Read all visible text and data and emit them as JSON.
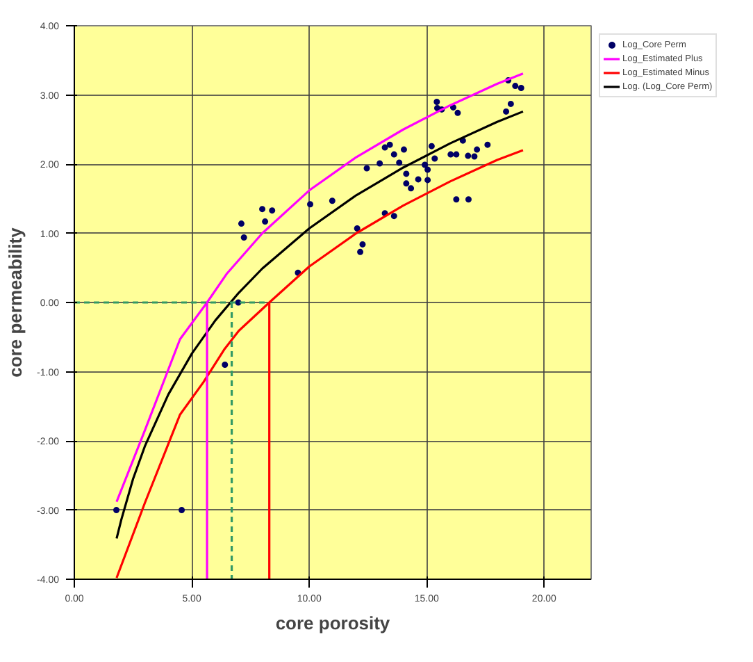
{
  "chart_data": {
    "type": "scatter",
    "xlabel": "core porosity",
    "ylabel": "core permeability",
    "xlim": [
      0,
      22
    ],
    "ylim": [
      -4,
      4
    ],
    "xticks": [
      {
        "value": 0,
        "label": "0.00"
      },
      {
        "value": 5,
        "label": "5.00"
      },
      {
        "value": 10,
        "label": "10.00"
      },
      {
        "value": 15,
        "label": "15.00"
      },
      {
        "value": 20,
        "label": "20.00"
      }
    ],
    "yticks": [
      {
        "value": -4,
        "label": "-4.00"
      },
      {
        "value": -3,
        "label": "-3.00"
      },
      {
        "value": -2,
        "label": "-2.00"
      },
      {
        "value": -1,
        "label": "-1.00"
      },
      {
        "value": 0,
        "label": "0.00"
      },
      {
        "value": 1,
        "label": "1.00"
      },
      {
        "value": 2,
        "label": "2.00"
      },
      {
        "value": 3,
        "label": "3.00"
      },
      {
        "value": 4,
        "label": "4.00"
      }
    ],
    "grid": true,
    "legend": "top right",
    "series": [
      {
        "name": "Log_Core Perm",
        "marker": "circle",
        "color": "#000066",
        "x": [
          1.79,
          4.57,
          6.41,
          6.98,
          7.11,
          7.22,
          8.0,
          8.12,
          8.42,
          9.52,
          10.04,
          10.98,
          12.04,
          12.17,
          12.27,
          12.45,
          13.0,
          13.22,
          13.22,
          13.43,
          13.61,
          13.61,
          13.83,
          14.03,
          14.13,
          14.13,
          14.33,
          14.64,
          14.92,
          15.04,
          15.04,
          15.21,
          15.34,
          15.43,
          15.45,
          15.64,
          16.02,
          16.13,
          16.26,
          16.26,
          16.32,
          16.54,
          16.76,
          16.78,
          17.03,
          17.14,
          17.59,
          18.38,
          18.47,
          18.58,
          18.77,
          19.02
        ],
        "values": [
          -3.0,
          -3.0,
          -0.9,
          0.0,
          1.14,
          0.94,
          1.35,
          1.17,
          1.33,
          0.43,
          1.42,
          1.47,
          1.07,
          0.73,
          0.84,
          1.94,
          2.01,
          2.24,
          1.29,
          2.28,
          2.14,
          1.25,
          2.02,
          2.21,
          1.86,
          1.72,
          1.65,
          1.78,
          1.99,
          1.92,
          1.77,
          2.26,
          2.08,
          2.9,
          2.81,
          2.79,
          2.14,
          2.82,
          2.14,
          1.49,
          2.74,
          2.34,
          2.12,
          1.49,
          2.11,
          2.21,
          2.28,
          2.76,
          3.21,
          2.87,
          3.13,
          3.1
        ]
      },
      {
        "name": "Log_Estimated Plus",
        "type": "line",
        "color": "#ff00ff",
        "x": [
          1.8,
          3,
          4.5,
          5.65,
          6.5,
          8,
          10,
          12,
          14,
          16,
          18,
          19.1
        ],
        "values": [
          -2.88,
          -1.85,
          -0.53,
          0.0,
          0.42,
          1.0,
          1.62,
          2.1,
          2.5,
          2.85,
          3.16,
          3.31
        ]
      },
      {
        "name": "Log_Estimated Minus",
        "type": "line",
        "color": "#ff0000",
        "x": [
          1.8,
          3,
          4.5,
          5.5,
          6.4,
          7,
          8.3,
          10,
          12,
          14,
          16,
          18,
          19.1
        ],
        "values": [
          -3.98,
          -2.9,
          -1.62,
          -1.15,
          -0.67,
          -0.41,
          0.0,
          0.52,
          1.0,
          1.4,
          1.75,
          2.06,
          2.2
        ]
      },
      {
        "name": "Log. (Log_Core Perm)",
        "type": "line",
        "color": "#000000",
        "x": [
          1.8,
          2,
          2.5,
          3,
          4,
          5,
          6,
          7,
          8,
          10,
          12,
          14,
          16,
          18,
          19.1
        ],
        "values": [
          -3.41,
          -3.14,
          -2.55,
          -2.08,
          -1.33,
          -0.74,
          -0.26,
          0.14,
          0.49,
          1.07,
          1.55,
          1.95,
          2.3,
          2.61,
          2.76
        ]
      },
      {
        "type": "line",
        "color": "#339966",
        "line_style": "dashed",
        "x": [
          0,
          8.1
        ],
        "values": [
          0,
          0
        ]
      },
      {
        "type": "line",
        "color": "#ff00ff",
        "x": [
          5.65,
          5.65
        ],
        "values": [
          0,
          -4
        ]
      },
      {
        "type": "line",
        "color": "#339966",
        "line_style": "dashed",
        "x": [
          6.7,
          6.7
        ],
        "values": [
          0,
          -4
        ]
      },
      {
        "type": "line",
        "color": "#ff0000",
        "x": [
          8.3,
          8.3
        ],
        "values": [
          0,
          -4
        ]
      }
    ]
  }
}
